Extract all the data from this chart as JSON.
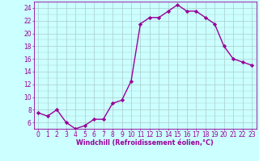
{
  "x": [
    0,
    1,
    2,
    3,
    4,
    5,
    6,
    7,
    8,
    9,
    10,
    11,
    12,
    13,
    14,
    15,
    16,
    17,
    18,
    19,
    20,
    21,
    22,
    23
  ],
  "y": [
    7.5,
    7.0,
    8.0,
    6.0,
    5.0,
    5.5,
    6.5,
    6.5,
    9.0,
    9.5,
    12.5,
    21.5,
    22.5,
    22.5,
    23.5,
    24.5,
    23.5,
    23.5,
    22.5,
    21.5,
    18.0,
    16.0,
    15.5,
    15.0
  ],
  "line_color": "#990099",
  "marker": "D",
  "marker_size": 2.2,
  "linewidth": 1.0,
  "background_color": "#ccffff",
  "grid_color": "#aacccc",
  "xlabel": "Windchill (Refroidissement éolien,°C)",
  "xlabel_color": "#990099",
  "tick_color": "#990099",
  "spine_color": "#990099",
  "xlim": [
    -0.5,
    23.5
  ],
  "ylim": [
    5.0,
    25.0
  ],
  "yticks": [
    6,
    8,
    10,
    12,
    14,
    16,
    18,
    20,
    22,
    24
  ],
  "xticks": [
    0,
    1,
    2,
    3,
    4,
    5,
    6,
    7,
    8,
    9,
    10,
    11,
    12,
    13,
    14,
    15,
    16,
    17,
    18,
    19,
    20,
    21,
    22,
    23
  ],
  "xlabel_fontsize": 5.8,
  "tick_fontsize": 5.5
}
